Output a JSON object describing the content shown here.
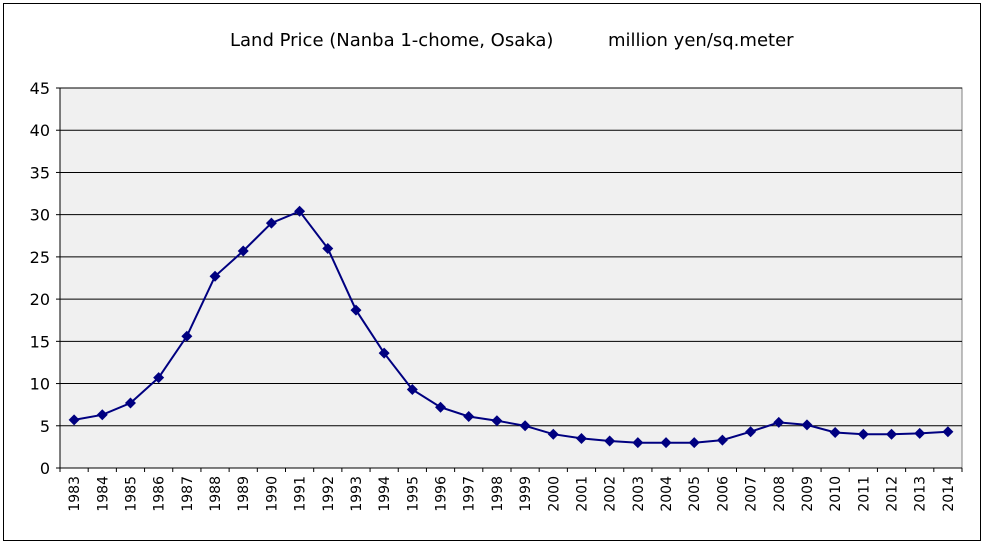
{
  "chart_data": {
    "type": "line",
    "title": "Land Price (Nanba 1-chome, Osaka)",
    "unit_label": "million yen/sq.meter",
    "x": [
      "1983",
      "1984",
      "1985",
      "1986",
      "1987",
      "1988",
      "1989",
      "1990",
      "1991",
      "1992",
      "1993",
      "1994",
      "1995",
      "1996",
      "1997",
      "1998",
      "1999",
      "2000",
      "2001",
      "2002",
      "2003",
      "2004",
      "2005",
      "2006",
      "2007",
      "2008",
      "2009",
      "2010",
      "2011",
      "2012",
      "2013",
      "2014"
    ],
    "series": [
      {
        "name": "",
        "values": [
          5.7,
          6.3,
          7.7,
          10.7,
          15.6,
          22.7,
          25.7,
          29.0,
          30.4,
          26.0,
          18.7,
          13.6,
          9.3,
          7.2,
          6.1,
          5.6,
          5.0,
          4.0,
          3.5,
          3.2,
          3.0,
          3.0,
          3.0,
          3.3,
          4.3,
          5.4,
          5.1,
          4.2,
          4.0,
          4.0,
          4.1,
          4.3
        ]
      }
    ],
    "ylim": [
      0,
      45
    ],
    "yticks": [
      0,
      5,
      10,
      15,
      20,
      25,
      30,
      35,
      40,
      45
    ],
    "grid": true,
    "legend": "none",
    "colors": {
      "line": "#000080",
      "marker": "#000080",
      "plot_bg": "#f0f0f0",
      "grid": "#000000"
    }
  }
}
